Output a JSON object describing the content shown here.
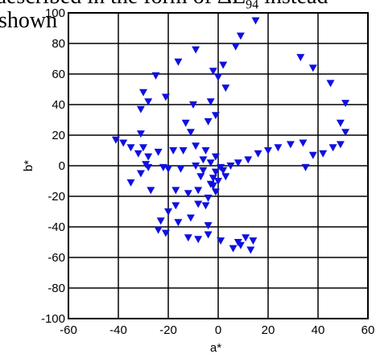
{
  "page_text": {
    "line1": "described in the form of",
    "line1_symbol": "ΔE",
    "line1_subscript": "94",
    "line1_tail": "instead",
    "line2": "shown"
  },
  "chart_data": {
    "type": "scatter",
    "title": "",
    "xlabel": "a*",
    "ylabel": "b*",
    "xlim": [
      -60,
      60
    ],
    "ylim": [
      -100,
      100
    ],
    "xticks": [
      -60,
      -40,
      -20,
      0,
      20,
      40,
      60
    ],
    "yticks": [
      -100,
      -80,
      -60,
      -40,
      -20,
      0,
      20,
      40,
      60,
      80,
      100
    ],
    "xtick_labels": [
      "-60",
      "-40",
      "-20",
      "0",
      "20",
      "40",
      "60"
    ],
    "ytick_labels": [
      "-100",
      "-80",
      "-60",
      "-40",
      "-20",
      "0",
      "20",
      "40",
      "60",
      "80",
      "100"
    ],
    "grid": true,
    "marker": "triangle-down",
    "marker_color": "#1010e0",
    "points": [
      [
        15,
        95
      ],
      [
        9,
        85
      ],
      [
        7,
        78
      ],
      [
        -9,
        76
      ],
      [
        -16,
        68
      ],
      [
        2,
        66
      ],
      [
        -2,
        62
      ],
      [
        -25,
        59
      ],
      [
        -30,
        48
      ],
      [
        -21,
        45
      ],
      [
        -28,
        42
      ],
      [
        -10,
        40
      ],
      [
        -31,
        37
      ],
      [
        -3,
        42
      ],
      [
        0,
        58
      ],
      [
        3,
        51
      ],
      [
        -4,
        29
      ],
      [
        -1,
        33
      ],
      [
        -13,
        28
      ],
      [
        -11,
        22
      ],
      [
        -31,
        21
      ],
      [
        -30,
        12
      ],
      [
        -28,
        6
      ],
      [
        -24,
        9
      ],
      [
        -18,
        10
      ],
      [
        -14,
        10
      ],
      [
        -9,
        13
      ],
      [
        -5,
        10
      ],
      [
        -41,
        17
      ],
      [
        -38,
        15
      ],
      [
        -35,
        12
      ],
      [
        -32,
        8
      ],
      [
        -29,
        1
      ],
      [
        -31,
        -5
      ],
      [
        -22,
        -1
      ],
      [
        -15,
        -2
      ],
      [
        -9,
        0
      ],
      [
        -6,
        4
      ],
      [
        -3,
        2
      ],
      [
        -1,
        6
      ],
      [
        1,
        -1
      ],
      [
        -1,
        -4
      ],
      [
        -2,
        -8
      ],
      [
        0,
        -10
      ],
      [
        -3,
        -12
      ],
      [
        -1,
        -17
      ],
      [
        -4,
        -21
      ],
      [
        -5,
        -26
      ],
      [
        -8,
        -16
      ],
      [
        -12,
        -18
      ],
      [
        -17,
        -26
      ],
      [
        -20,
        -30
      ],
      [
        -23,
        -36
      ],
      [
        -24,
        -42
      ],
      [
        -21,
        -44
      ],
      [
        -16,
        -37
      ],
      [
        -11,
        -34
      ],
      [
        -8,
        -25
      ],
      [
        -4,
        -39
      ],
      [
        -12,
        -47
      ],
      [
        -8,
        -48
      ],
      [
        -4,
        -45
      ],
      [
        1,
        -49
      ],
      [
        6,
        -54
      ],
      [
        9,
        -52
      ],
      [
        13,
        -55
      ],
      [
        14,
        -49
      ],
      [
        11,
        -47
      ],
      [
        8,
        -50
      ],
      [
        3,
        -7
      ],
      [
        5,
        0
      ],
      [
        8,
        2
      ],
      [
        12,
        4
      ],
      [
        16,
        8
      ],
      [
        20,
        10
      ],
      [
        24,
        12
      ],
      [
        29,
        14
      ],
      [
        34,
        15
      ],
      [
        38,
        7
      ],
      [
        42,
        8
      ],
      [
        46,
        12
      ],
      [
        49,
        14
      ],
      [
        51,
        22
      ],
      [
        49,
        28
      ],
      [
        51,
        41
      ],
      [
        45,
        54
      ],
      [
        38,
        64
      ],
      [
        33,
        71
      ],
      [
        35,
        -1
      ],
      [
        -27,
        -16
      ],
      [
        -35,
        -11
      ],
      [
        -28,
        -1
      ],
      [
        -17,
        -16
      ],
      [
        -7,
        -7
      ],
      [
        -2,
        -13
      ],
      [
        2,
        -3
      ],
      [
        -6,
        -3
      ],
      [
        -20,
        -2
      ]
    ]
  }
}
